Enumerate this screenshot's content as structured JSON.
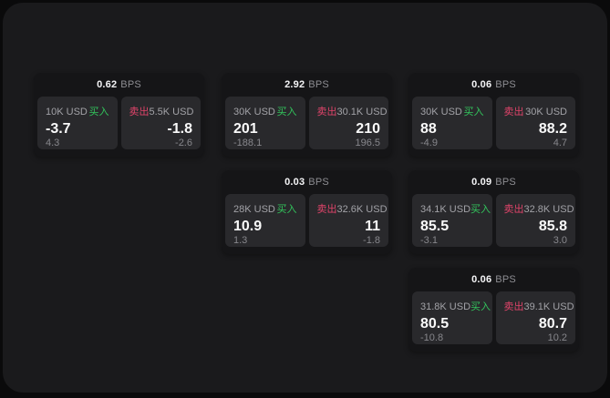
{
  "page": {
    "bps_unit": "BPS",
    "buy_label": "买入",
    "sell_label": "卖出",
    "colors": {
      "buy_accent": "#32c45c",
      "sell_accent": "#e0446a",
      "page_background": "#1a1a1c",
      "card_background": "#151517",
      "tile_background": "#29292c"
    }
  },
  "cards": [
    {
      "bps": "0.62",
      "buy": {
        "amount": "10K USD",
        "value": "-3.7",
        "sub": "4.3"
      },
      "sell": {
        "amount": "5.5K USD",
        "value": "-1.8",
        "sub": "-2.6"
      }
    },
    {
      "bps": "2.92",
      "buy": {
        "amount": "30K USD",
        "value": "201",
        "sub": "-188.1"
      },
      "sell": {
        "amount": "30.1K USD",
        "value": "210",
        "sub": "196.5"
      }
    },
    {
      "bps": "0.06",
      "buy": {
        "amount": "30K USD",
        "value": "88",
        "sub": "-4.9"
      },
      "sell": {
        "amount": "30K USD",
        "value": "88.2",
        "sub": "4.7"
      }
    },
    {
      "bps": "0.03",
      "buy": {
        "amount": "28K USD",
        "value": "10.9",
        "sub": "1.3"
      },
      "sell": {
        "amount": "32.6K USD",
        "value": "11",
        "sub": "-1.8"
      }
    },
    {
      "bps": "0.09",
      "buy": {
        "amount": "34.1K USD",
        "value": "85.5",
        "sub": "-3.1"
      },
      "sell": {
        "amount": "32.8K USD",
        "value": "85.8",
        "sub": "3.0"
      }
    },
    {
      "bps": "0.06",
      "buy": {
        "amount": "31.8K USD",
        "value": "80.5",
        "sub": "-10.8"
      },
      "sell": {
        "amount": "39.1K USD",
        "value": "80.7",
        "sub": "10.2"
      }
    }
  ]
}
